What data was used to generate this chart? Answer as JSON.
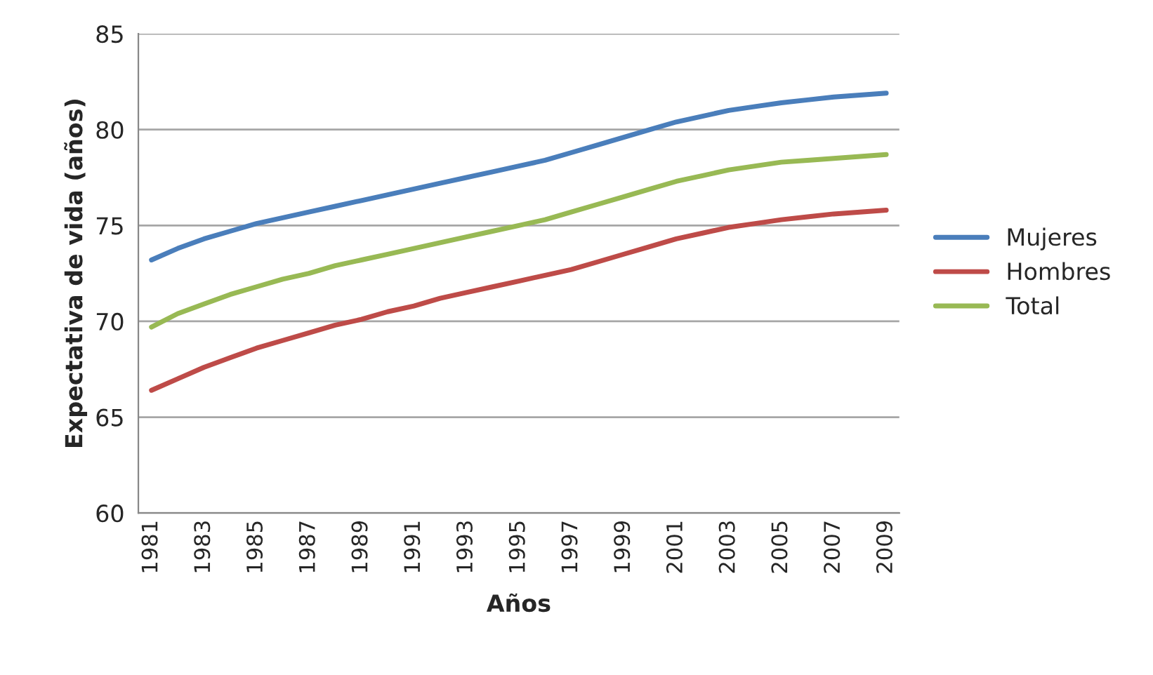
{
  "chart_data": {
    "type": "line",
    "xlabel": "Años",
    "ylabel": "Expectativa de vida (años)",
    "categories": [
      "1981",
      null,
      "1983",
      null,
      "1985",
      null,
      "1987",
      null,
      "1989",
      null,
      "1991",
      null,
      "1993",
      null,
      "1995",
      null,
      "1997",
      null,
      "1999",
      null,
      "2001",
      null,
      "2003",
      null,
      "2005",
      null,
      "2007",
      null,
      "2009"
    ],
    "series": [
      {
        "name": "Mujeres",
        "color": "#4a7ebb",
        "values": [
          73.2,
          73.8,
          74.3,
          74.7,
          75.1,
          75.4,
          75.7,
          76.0,
          76.3,
          76.6,
          76.9,
          77.2,
          77.5,
          77.8,
          78.1,
          78.4,
          78.8,
          79.2,
          79.6,
          80.0,
          80.4,
          80.7,
          81.0,
          81.2,
          81.4,
          81.55,
          81.7,
          81.8,
          81.9
        ]
      },
      {
        "name": "Hombres",
        "color": "#be4b48",
        "values": [
          66.4,
          67.0,
          67.6,
          68.1,
          68.6,
          69.0,
          69.4,
          69.8,
          70.1,
          70.5,
          70.8,
          71.2,
          71.5,
          71.8,
          72.1,
          72.4,
          72.7,
          73.1,
          73.5,
          73.9,
          74.3,
          74.6,
          74.9,
          75.1,
          75.3,
          75.45,
          75.6,
          75.7,
          75.8
        ]
      },
      {
        "name": "Total",
        "color": "#98b954",
        "values": [
          69.7,
          70.4,
          70.9,
          71.4,
          71.8,
          72.2,
          72.5,
          72.9,
          73.2,
          73.5,
          73.8,
          74.1,
          74.4,
          74.7,
          75.0,
          75.3,
          75.7,
          76.1,
          76.5,
          76.9,
          77.3,
          77.6,
          77.9,
          78.1,
          78.3,
          78.4,
          78.5,
          78.6,
          78.7
        ]
      }
    ],
    "ylim": [
      60,
      85
    ],
    "yticks": [
      60,
      65,
      70,
      75,
      80,
      85
    ],
    "grid": "y",
    "legend": "right",
    "line_style": "solid",
    "marker": "none"
  }
}
